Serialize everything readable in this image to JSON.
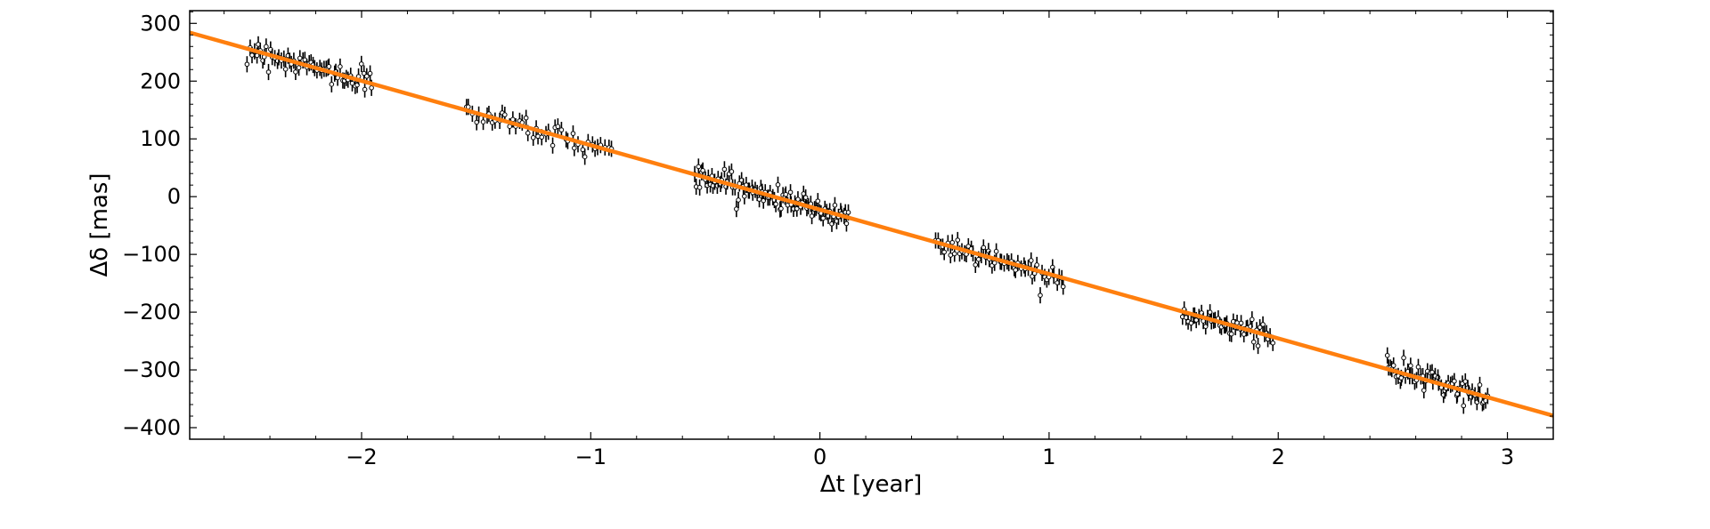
{
  "chart_data": {
    "type": "scatter",
    "xlabel": "Δt [year]",
    "ylabel": "Δδ [mas]",
    "xlim": [
      -2.75,
      3.2
    ],
    "ylim": [
      -420,
      322
    ],
    "xticks": [
      -2,
      -1,
      0,
      1,
      2,
      3
    ],
    "xtick_labels": [
      "−2",
      "−1",
      "0",
      "1",
      "2",
      "3"
    ],
    "yticks": [
      300,
      200,
      100,
      0,
      -100,
      -200,
      -300,
      -400
    ],
    "ytick_labels": [
      "300",
      "200",
      "100",
      "0",
      "−100",
      "−200",
      "−300",
      "−400"
    ],
    "grid": false,
    "legend": "none",
    "colors": {
      "fit": "#ff7f0e",
      "points": "#000000"
    },
    "fit_line": {
      "slope": -111.5,
      "intercept": -22.5,
      "x_range": [
        -2.75,
        3.2
      ]
    },
    "observation_groups": [
      {
        "x_range": [
          -2.5,
          -1.95
        ],
        "n": 60
      },
      {
        "x_range": [
          -1.55,
          -0.9
        ],
        "n": 45
      },
      {
        "x_range": [
          -0.55,
          0.13
        ],
        "n": 90
      },
      {
        "x_range": [
          0.5,
          1.07
        ],
        "n": 55
      },
      {
        "x_range": [
          1.58,
          1.98
        ],
        "n": 45
      },
      {
        "x_range": [
          2.47,
          2.92
        ],
        "n": 55
      }
    ],
    "scatter_sigma": 14,
    "error_bar_half_length": 14
  }
}
